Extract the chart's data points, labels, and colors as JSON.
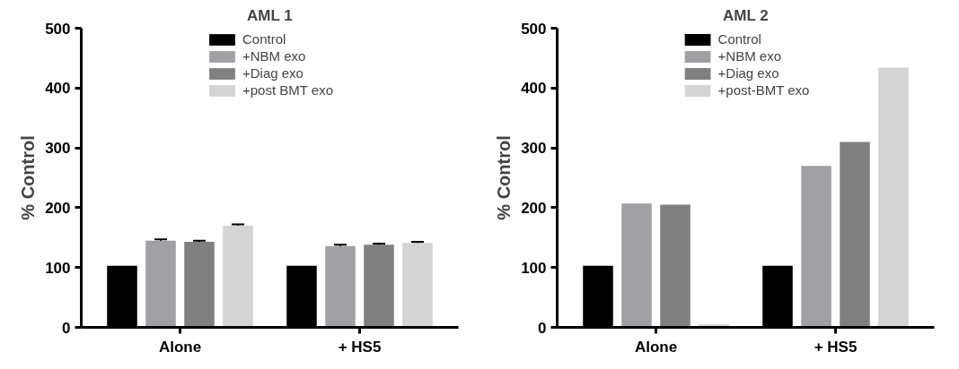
{
  "chart_data": [
    {
      "type": "bar",
      "title": "AML 1",
      "ylabel": "% Control",
      "categories": [
        "Alone",
        "+ HS5"
      ],
      "ylim": [
        0,
        500
      ],
      "yticks": [
        0,
        100,
        200,
        300,
        400,
        500
      ],
      "grid": false,
      "legend": "top",
      "series": [
        {
          "name": "Control",
          "color": "#000000",
          "values": [
            103,
            103
          ]
        },
        {
          "name": "+NBM exo",
          "color": "#a0a0a5",
          "values": [
            145,
            136
          ],
          "errors": [
            2,
            2
          ]
        },
        {
          "name": "+Diag exo",
          "color": "#808080",
          "values": [
            143,
            138
          ],
          "errors": [
            2,
            2
          ]
        },
        {
          "name": "+post BMT exo",
          "color": "#d4d4d4",
          "values": [
            170,
            141
          ],
          "errors": [
            2,
            2
          ]
        }
      ]
    },
    {
      "type": "bar",
      "title": "AML 2",
      "ylabel": "% Control",
      "categories": [
        "Alone",
        "+ HS5"
      ],
      "ylim": [
        0,
        500
      ],
      "yticks": [
        0,
        100,
        200,
        300,
        400,
        500
      ],
      "grid": false,
      "legend": "top",
      "series": [
        {
          "name": "Control",
          "color": "#000000",
          "values": [
            103,
            103
          ]
        },
        {
          "name": "+NBM exo",
          "color": "#a0a0a5",
          "values": [
            207,
            270
          ]
        },
        {
          "name": "+Diag exo",
          "color": "#808080",
          "values": [
            205,
            310
          ]
        },
        {
          "name": "+post-BMT exo",
          "color": "#d4d4d4",
          "values": [
            5,
            434
          ]
        }
      ]
    }
  ]
}
